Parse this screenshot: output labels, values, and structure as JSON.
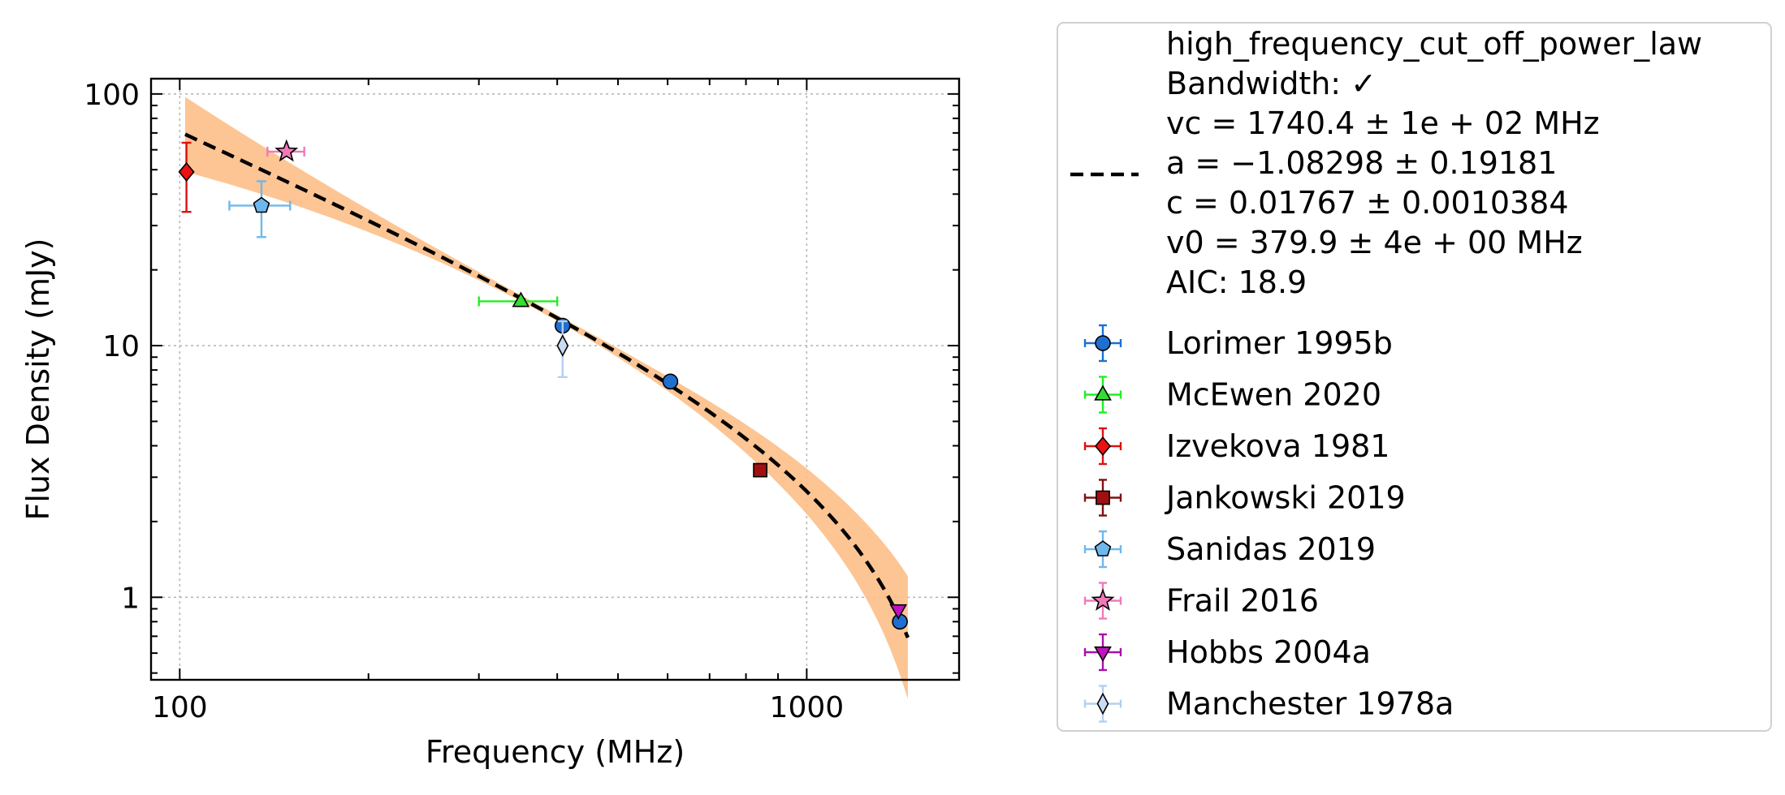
{
  "chart_data": {
    "type": "scatter",
    "xlabel": "Frequency (MHz)",
    "ylabel": "Flux Density (mJy)",
    "xscale": "log",
    "yscale": "log",
    "xlim": [
      90,
      1750
    ],
    "ylim": [
      0.47,
      115
    ],
    "x_ticks": [
      {
        "value": 100,
        "label": "100"
      },
      {
        "value": 1000,
        "label": "1000"
      }
    ],
    "y_ticks": [
      {
        "value": 1,
        "label": "1"
      },
      {
        "value": 10,
        "label": "10"
      },
      {
        "value": 100,
        "label": "100"
      }
    ],
    "grid": true,
    "legend_placement": "outside-right",
    "fit": {
      "model": "high_frequency_cut_off_power_law",
      "label_lines": [
        "high_frequency_cut_off_power_law",
        "Bandwidth: ✓",
        "vc = 1740.4 ± 1e + 02 MHz",
        "a = −1.08298 ± 0.19181",
        "c = 0.01767 ± 0.0010384",
        "v0 = 379.9 ± 4e + 00 MHz",
        "AIC: 18.9"
      ],
      "params": {
        "vc": 1740.4,
        "a": -1.08298,
        "c": 0.01767,
        "v0": 379.9
      },
      "x_range": [
        102,
        1450
      ],
      "line_color": "#000000",
      "band_color": "#fdbf87"
    },
    "series": [
      {
        "name": "Lorimer 1995b",
        "marker": "circle",
        "color": "#1f6fd1",
        "err_color": "#1f6fd1",
        "points": [
          {
            "x": 408,
            "y": 12.0,
            "xerr": 0,
            "yerr": 0
          },
          {
            "x": 606,
            "y": 7.2,
            "xerr": 0,
            "yerr": 0
          },
          {
            "x": 1408,
            "y": 0.8,
            "xerr": 0,
            "yerr": 0
          }
        ]
      },
      {
        "name": "McEwen 2020",
        "marker": "triangle-up",
        "color": "#33dd33",
        "err_color": "#22ee22",
        "points": [
          {
            "x": 350,
            "y": 15.0,
            "xerr": 50,
            "yerr": 0
          }
        ]
      },
      {
        "name": "Izvekova 1981",
        "marker": "diamond",
        "color": "#ee1111",
        "err_color": "#dd1111",
        "points": [
          {
            "x": 102.5,
            "y": 49,
            "xerr": 0,
            "yerr": 15
          }
        ]
      },
      {
        "name": "Jankowski 2019",
        "marker": "square",
        "color": "#a01010",
        "err_color": "#801010",
        "points": [
          {
            "x": 843,
            "y": 3.2,
            "xerr": 0,
            "yerr": 0
          }
        ]
      },
      {
        "name": "Sanidas 2019",
        "marker": "pentagon",
        "color": "#6fb8ee",
        "err_color": "#6fb8ee",
        "points": [
          {
            "x": 135,
            "y": 36,
            "xerr": 15,
            "yerr": 9
          }
        ]
      },
      {
        "name": "Frail 2016",
        "marker": "star",
        "color": "#f07ab8",
        "err_color": "#f07ab8",
        "points": [
          {
            "x": 148,
            "y": 59,
            "xerr": 10,
            "yerr": 0
          }
        ]
      },
      {
        "name": "Hobbs 2004a",
        "marker": "triangle-down",
        "color": "#c012c0",
        "err_color": "#aa10aa",
        "points": [
          {
            "x": 1400,
            "y": 0.89,
            "xerr": 0,
            "yerr": 0
          }
        ]
      },
      {
        "name": "Manchester 1978a",
        "marker": "thin-diamond",
        "color": "#c8dcf4",
        "err_color": "#b4cff0",
        "points": [
          {
            "x": 408,
            "y": 10.0,
            "xerr": 0,
            "yerr": 2.5
          }
        ]
      }
    ]
  }
}
